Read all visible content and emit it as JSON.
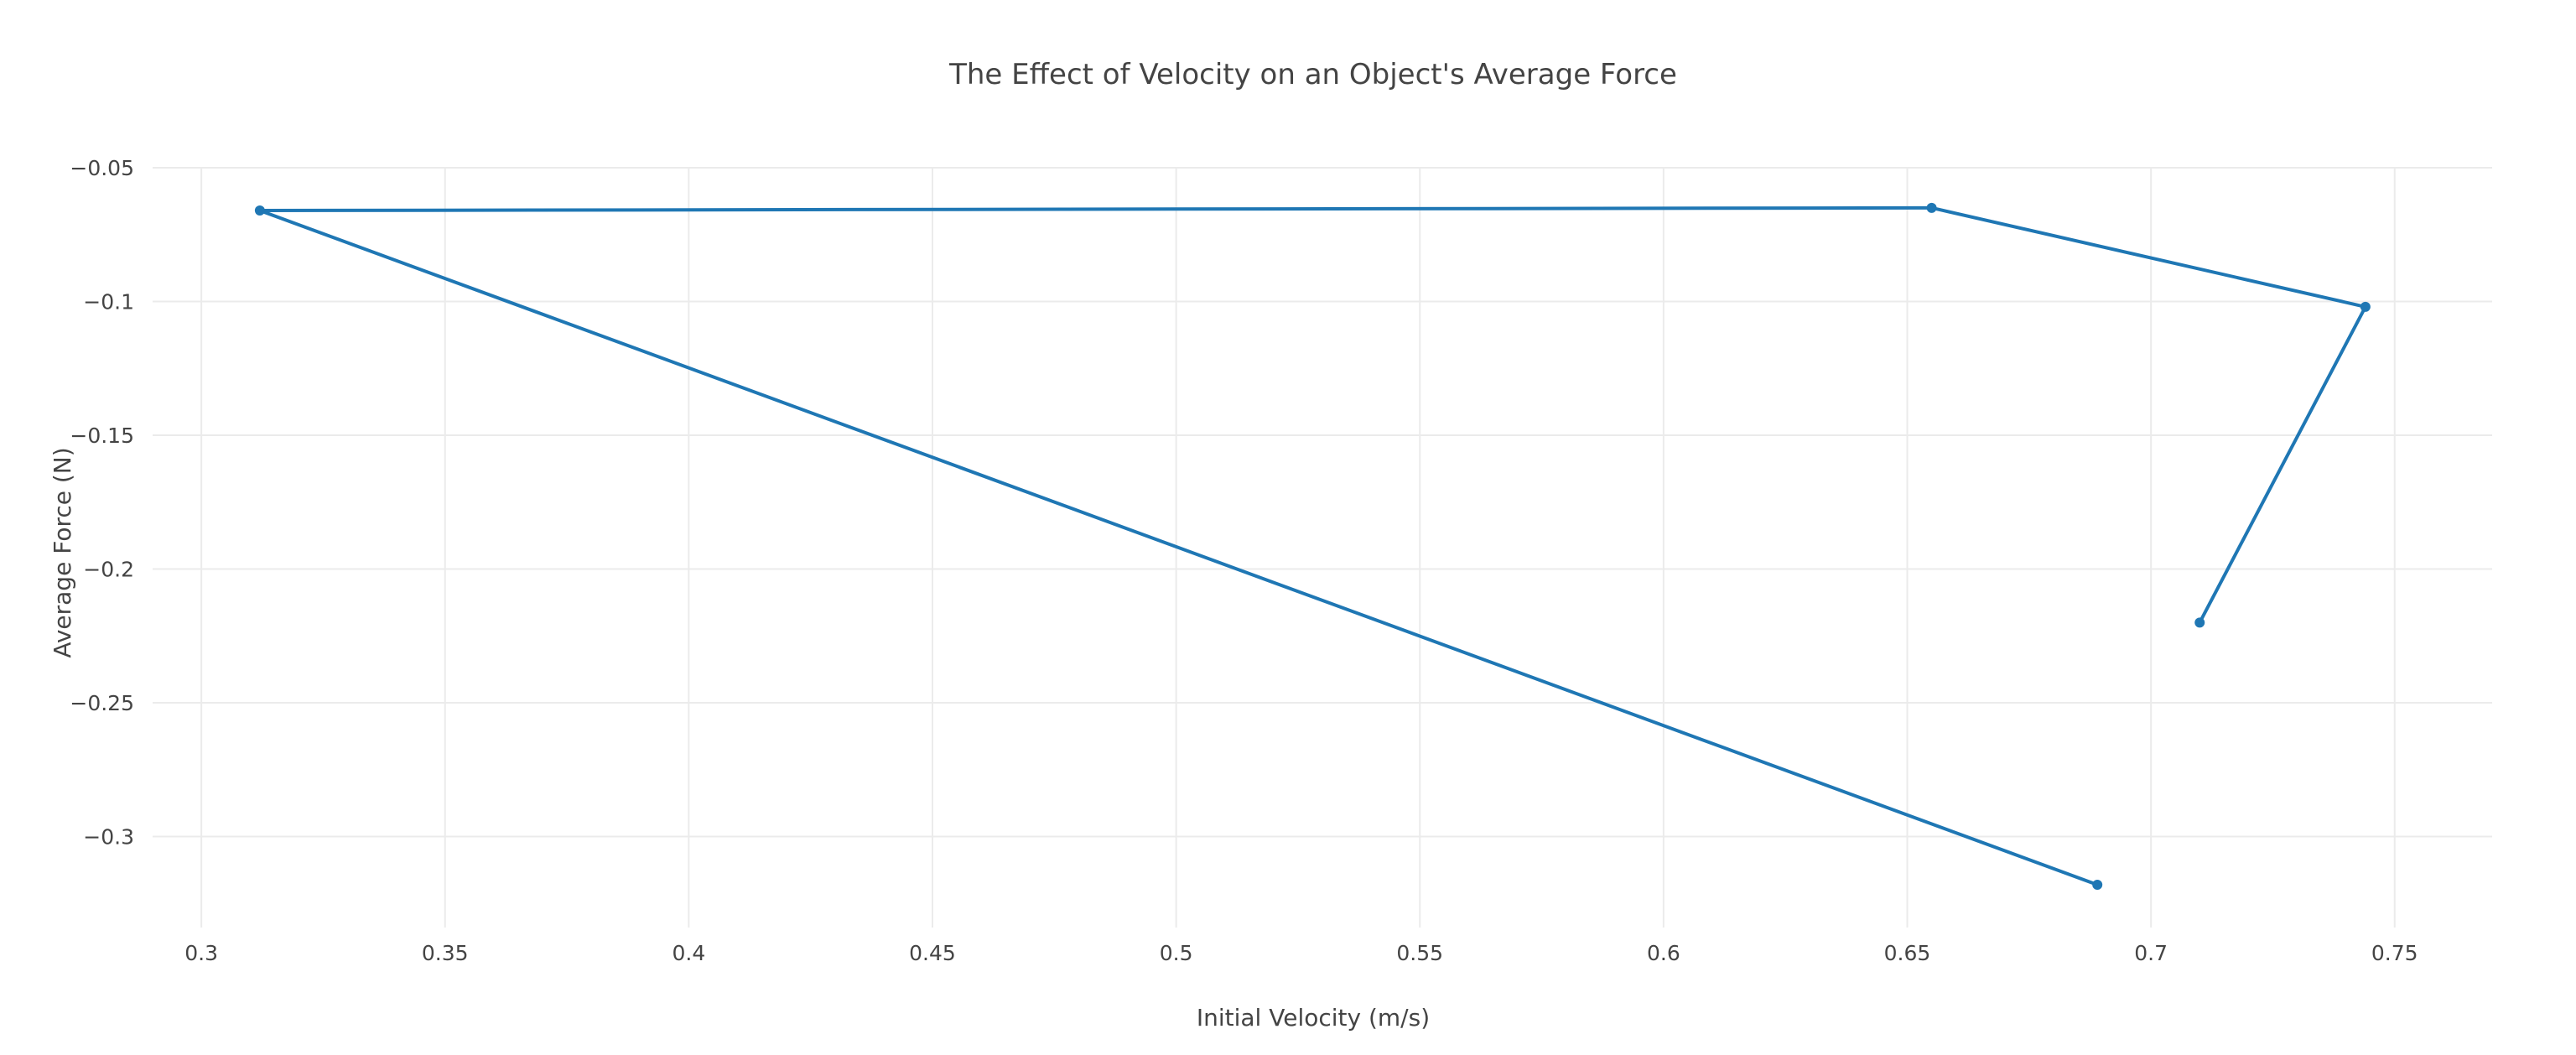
{
  "chart_data": {
    "type": "line",
    "title": "The Effect of Velocity on an Object's Average Force",
    "xlabel": "Initial Velocity (m/s)",
    "ylabel": "Average Force (N)",
    "xlim": [
      0.29,
      0.77
    ],
    "ylim": [
      -0.334,
      -0.05
    ],
    "xticks": [
      0.3,
      0.35,
      0.4,
      0.45,
      0.5,
      0.55,
      0.6,
      0.65,
      0.7,
      0.75
    ],
    "xtick_labels": [
      "0.3",
      "0.35",
      "0.4",
      "0.45",
      "0.5",
      "0.55",
      "0.6",
      "0.65",
      "0.7",
      "0.75"
    ],
    "yticks": [
      -0.05,
      -0.1,
      -0.15,
      -0.2,
      -0.25,
      -0.3
    ],
    "ytick_labels": [
      "−0.05",
      "−0.1",
      "−0.15",
      "−0.2",
      "−0.25",
      "−0.3"
    ],
    "grid": true,
    "line_color": "#1f77b4",
    "series": [
      {
        "x": [
          0.689,
          0.312,
          0.655,
          0.744,
          0.71
        ],
        "y": [
          -0.318,
          -0.066,
          -0.065,
          -0.102,
          -0.22
        ]
      }
    ]
  }
}
